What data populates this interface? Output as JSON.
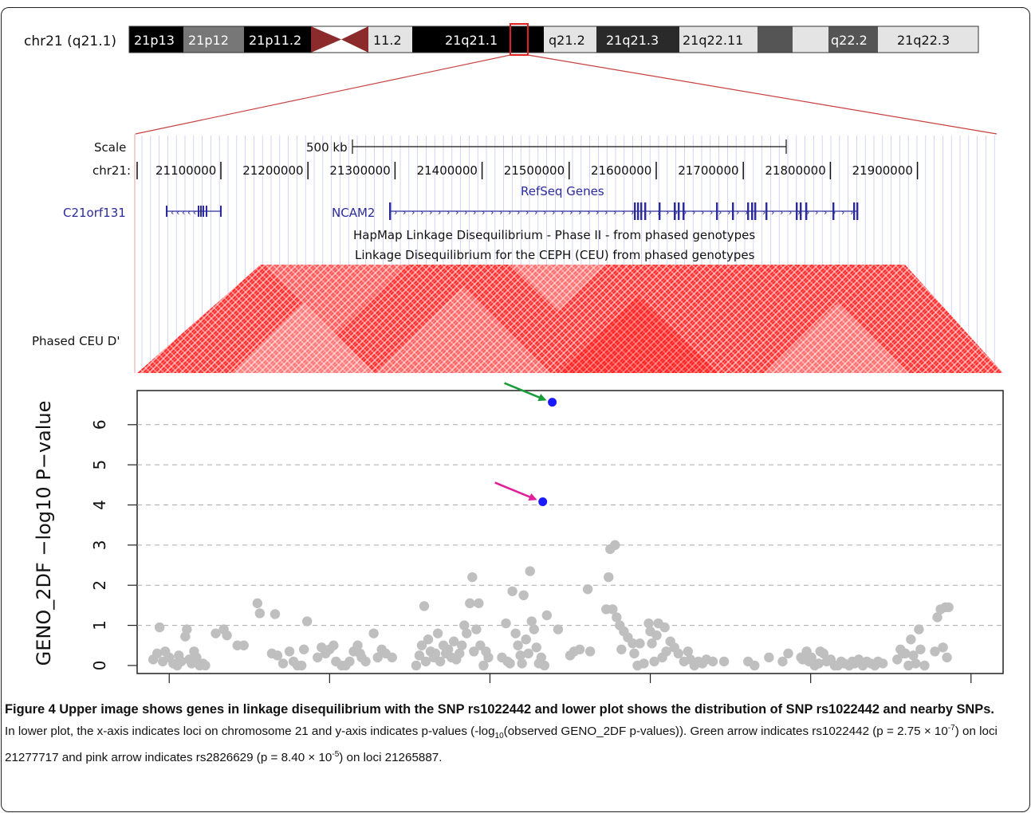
{
  "ideogram": {
    "label": "chr21 (q21.1)",
    "bands": [
      "21p13",
      "21p12",
      "21p11.2",
      "11.2",
      "21q21.1",
      "q21.2",
      "21q21.3",
      "21q22.11",
      "q22.2",
      "21q22.3"
    ],
    "highlight_color": "#e02020",
    "centromere_color": "#8b2b2b"
  },
  "browser": {
    "scale_label": "Scale",
    "scale_bar_label": "500 kb",
    "chrom_label": "chr21:",
    "positions": [
      "21100000",
      "21200000",
      "21300000",
      "21400000",
      "21500000",
      "21600000",
      "21700000",
      "21800000",
      "21900000"
    ],
    "refseq_title": "RefSeq Genes",
    "genes": [
      "C21orf131",
      "NCAM2"
    ],
    "hapmap_title": "HapMap Linkage Disequilibrium - Phase II - from phased genotypes",
    "ld_title": "Linkage Disequilibrium for the CEPH (CEU) from phased genotypes",
    "track_label": "Phased CEU D'",
    "gene_color": "#2b2b9a",
    "ld_color": "#ff1010"
  },
  "chart_data": {
    "type": "scatter",
    "ylabel": "GENO_2DF −log10 P−value",
    "xlabel": "",
    "x_ticks": [
      "20800000",
      "21000000",
      "21200000",
      "21400000",
      "21600000",
      "21800000"
    ],
    "y_ticks": [
      "0",
      "1",
      "2",
      "3",
      "4",
      "5",
      "6"
    ],
    "xlim": [
      20760000,
      21840000
    ],
    "ylim": [
      -0.2,
      6.85
    ],
    "grid": "dashed horizontal",
    "colors": {
      "background_points": "#bfbfbf",
      "highlight_points": "#1a1aff",
      "green_arrow": "#1a9c3a",
      "pink_arrow": "#e0209a"
    },
    "highlighted": [
      {
        "x": 21277717,
        "y": 6.56,
        "arrow": "green"
      },
      {
        "x": 21265887,
        "y": 4.08,
        "arrow": "pink"
      }
    ],
    "points": [
      [
        20780000,
        0.15
      ],
      [
        20785000,
        0.3
      ],
      [
        20788000,
        0.95
      ],
      [
        20792000,
        0.1
      ],
      [
        20795000,
        0.35
      ],
      [
        20800000,
        0.2
      ],
      [
        20805000,
        0.05
      ],
      [
        20810000,
        0.0
      ],
      [
        20812000,
        0.25
      ],
      [
        20815000,
        0.1
      ],
      [
        20820000,
        0.72
      ],
      [
        20822000,
        0.9
      ],
      [
        20825000,
        0.15
      ],
      [
        20828000,
        0.05
      ],
      [
        20831000,
        0.35
      ],
      [
        20834000,
        0.2
      ],
      [
        20838000,
        0.0
      ],
      [
        20842000,
        0.05
      ],
      [
        20845000,
        0.0
      ],
      [
        20858000,
        0.8
      ],
      [
        20868000,
        0.9
      ],
      [
        20872000,
        0.75
      ],
      [
        20885000,
        0.5
      ],
      [
        20893000,
        0.5
      ],
      [
        20910000,
        1.55
      ],
      [
        20913000,
        1.3
      ],
      [
        20928000,
        0.3
      ],
      [
        20932000,
        1.28
      ],
      [
        20935000,
        0.25
      ],
      [
        20942000,
        0.05
      ],
      [
        20950000,
        0.35
      ],
      [
        20955000,
        0.1
      ],
      [
        20960000,
        0.0
      ],
      [
        20965000,
        0.0
      ],
      [
        20968000,
        0.4
      ],
      [
        20972000,
        1.1
      ],
      [
        20985000,
        0.2
      ],
      [
        20990000,
        0.45
      ],
      [
        20995000,
        0.3
      ],
      [
        21000000,
        0.4
      ],
      [
        21005000,
        0.5
      ],
      [
        21008000,
        0.1
      ],
      [
        21015000,
        0.0
      ],
      [
        21020000,
        0.0
      ],
      [
        21025000,
        0.1
      ],
      [
        21030000,
        0.35
      ],
      [
        21035000,
        0.5
      ],
      [
        21038000,
        0.3
      ],
      [
        21040000,
        0.2
      ],
      [
        21045000,
        0.1
      ],
      [
        21055000,
        0.8
      ],
      [
        21060000,
        0.2
      ],
      [
        21065000,
        0.4
      ],
      [
        21070000,
        0.3
      ],
      [
        21078000,
        0.2
      ],
      [
        21108000,
        0.0
      ],
      [
        21112000,
        0.25
      ],
      [
        21115000,
        0.5
      ],
      [
        21118000,
        1.48
      ],
      [
        21120000,
        0.1
      ],
      [
        21123000,
        0.65
      ],
      [
        21126000,
        0.35
      ],
      [
        21130000,
        0.2
      ],
      [
        21132000,
        0.3
      ],
      [
        21135000,
        0.8
      ],
      [
        21138000,
        0.1
      ],
      [
        21142000,
        0.5
      ],
      [
        21145000,
        0.3
      ],
      [
        21148000,
        0.4
      ],
      [
        21152000,
        0.2
      ],
      [
        21155000,
        0.6
      ],
      [
        21158000,
        0.15
      ],
      [
        21162000,
        0.3
      ],
      [
        21165000,
        0.5
      ],
      [
        21168000,
        1.0
      ],
      [
        21171000,
        0.8
      ],
      [
        21175000,
        1.55
      ],
      [
        21178000,
        2.2
      ],
      [
        21180000,
        0.35
      ],
      [
        21183000,
        0.9
      ],
      [
        21186000,
        1.55
      ],
      [
        21188000,
        0.5
      ],
      [
        21192000,
        0.0
      ],
      [
        21195000,
        0.35
      ],
      [
        21198000,
        0.2
      ],
      [
        21215000,
        0.2
      ],
      [
        21220000,
        1.05
      ],
      [
        21222000,
        0.1
      ],
      [
        21225000,
        0.05
      ],
      [
        21228000,
        1.85
      ],
      [
        21232000,
        0.8
      ],
      [
        21235000,
        0.5
      ],
      [
        21238000,
        0.25
      ],
      [
        21240000,
        0.05
      ],
      [
        21242000,
        1.75
      ],
      [
        21245000,
        0.65
      ],
      [
        21248000,
        0.3
      ],
      [
        21250000,
        2.35
      ],
      [
        21252000,
        1.1
      ],
      [
        21255000,
        0.9
      ],
      [
        21258000,
        0.45
      ],
      [
        21261000,
        0.05
      ],
      [
        21264000,
        0.2
      ],
      [
        21268000,
        0.0
      ],
      [
        21271000,
        1.25
      ],
      [
        21285000,
        0.9
      ],
      [
        21300000,
        0.25
      ],
      [
        21305000,
        0.35
      ],
      [
        21312000,
        0.4
      ],
      [
        21322000,
        1.9
      ],
      [
        21325000,
        0.35
      ],
      [
        21345000,
        1.4
      ],
      [
        21348000,
        2.2
      ],
      [
        21350000,
        2.9
      ],
      [
        21353000,
        1.4
      ],
      [
        21356000,
        3.0
      ],
      [
        21358000,
        1.2
      ],
      [
        21362000,
        1.0
      ],
      [
        21364000,
        0.4
      ],
      [
        21367000,
        0.85
      ],
      [
        21372000,
        0.7
      ],
      [
        21378000,
        0.55
      ],
      [
        21380000,
        0.3
      ],
      [
        21384000,
        0.0
      ],
      [
        21387000,
        0.55
      ],
      [
        21392000,
        0.05
      ],
      [
        21398000,
        1.05
      ],
      [
        21400000,
        0.85
      ],
      [
        21402000,
        0.55
      ],
      [
        21405000,
        0.1
      ],
      [
        21408000,
        0.75
      ],
      [
        21410000,
        1.05
      ],
      [
        21415000,
        0.2
      ],
      [
        21418000,
        0.95
      ],
      [
        21420000,
        0.35
      ],
      [
        21425000,
        0.6
      ],
      [
        21430000,
        0.45
      ],
      [
        21435000,
        0.3
      ],
      [
        21442000,
        0.1
      ],
      [
        21447000,
        0.35
      ],
      [
        21450000,
        0.15
      ],
      [
        21455000,
        0.0
      ],
      [
        21460000,
        0.1
      ],
      [
        21465000,
        0.05
      ],
      [
        21470000,
        0.15
      ],
      [
        21478000,
        0.1
      ],
      [
        21492000,
        0.1
      ],
      [
        21522000,
        0.1
      ],
      [
        21530000,
        0.0
      ],
      [
        21548000,
        0.2
      ],
      [
        21565000,
        0.1
      ],
      [
        21572000,
        0.3
      ],
      [
        21588000,
        0.2
      ],
      [
        21590000,
        0.15
      ],
      [
        21595000,
        0.35
      ],
      [
        21598000,
        0.1
      ],
      [
        21601000,
        0.2
      ],
      [
        21605000,
        0.0
      ],
      [
        21610000,
        0.05
      ],
      [
        21612000,
        0.35
      ],
      [
        21616000,
        0.3
      ],
      [
        21620000,
        0.1
      ],
      [
        21625000,
        0.15
      ],
      [
        21630000,
        0.0
      ],
      [
        21634000,
        0.0
      ],
      [
        21638000,
        0.1
      ],
      [
        21642000,
        0.05
      ],
      [
        21648000,
        0.0
      ],
      [
        21652000,
        0.1
      ],
      [
        21655000,
        0.05
      ],
      [
        21660000,
        0.15
      ],
      [
        21665000,
        0.0
      ],
      [
        21670000,
        0.1
      ],
      [
        21675000,
        0.05
      ],
      [
        21680000,
        0.0
      ],
      [
        21684000,
        0.1
      ],
      [
        21690000,
        0.05
      ],
      [
        21708000,
        0.15
      ],
      [
        21712000,
        0.4
      ],
      [
        21715000,
        0.3
      ],
      [
        21718000,
        0.3
      ],
      [
        21722000,
        0.0
      ],
      [
        21725000,
        0.65
      ],
      [
        21728000,
        0.25
      ],
      [
        21731000,
        0.05
      ],
      [
        21735000,
        0.9
      ],
      [
        21737000,
        0.4
      ],
      [
        21742000,
        0.0
      ],
      [
        21755000,
        0.35
      ],
      [
        21758000,
        1.2
      ],
      [
        21762000,
        1.4
      ],
      [
        21765000,
        0.45
      ],
      [
        21768000,
        1.45
      ],
      [
        21770000,
        0.2
      ],
      [
        21772000,
        1.45
      ]
    ]
  },
  "caption": {
    "bold_1": "Figure 4 Upper image shows genes in linkage disequilibrium with the SNP rs1022442 and lower plot shows the distribution of SNP rs1022442 and nearby SNPs",
    "bold_end": ".",
    "s1": " In lower plot, the x-axis indicates loci on chromosome 21 and y-axis indicates p-values (-log",
    "sub10": "10",
    "s2": "(observed GENO_2DF p-values)). Green arrow indicates rs1022442 (p = 2.75 × 10",
    "sup1": "-7",
    "s3": ") on loci 21277717 and pink arrow indicates rs2826629 (p = 8.40 × 10",
    "sup2": "-5",
    "s4": ") on loci 21265887."
  }
}
